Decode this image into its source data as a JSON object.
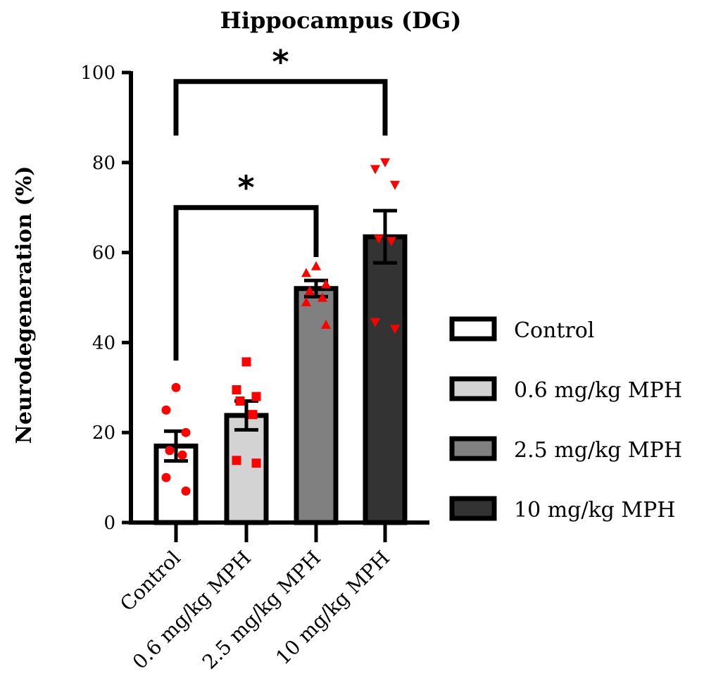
{
  "chart_data": {
    "type": "bar",
    "title": "Hippocampus (DG)",
    "ylabel": "Neurodegeneration (%)",
    "xlabel": "",
    "ylim": [
      0,
      100
    ],
    "yticks": [
      0,
      20,
      40,
      60,
      80,
      100
    ],
    "grid": false,
    "legend_position": "right",
    "categories": [
      "Control",
      "0.6 mg/kg MPH",
      "2.5 mg/kg MPH",
      "10 mg/kg MPH"
    ],
    "means": [
      17,
      23.8,
      52,
      63.5
    ],
    "sem": [
      3.3,
      3.2,
      1.8,
      5.8
    ],
    "bar_colors": [
      "#ffffff",
      "#d3d3d3",
      "#808080",
      "#333333"
    ],
    "point_color": "#ff0000",
    "marker_shapes": [
      "circle",
      "square",
      "triangle-up",
      "triangle-down"
    ],
    "points": [
      [
        30,
        25,
        20,
        16,
        15,
        10,
        7
      ],
      [
        35.7,
        29.5,
        28,
        27,
        24,
        13.8,
        13.2
      ],
      [
        57,
        55.5,
        53,
        51.5,
        50,
        49,
        44
      ],
      [
        80,
        78.5,
        75,
        63,
        62.5,
        44.5,
        43
      ]
    ],
    "annotations": [
      {
        "text": "*",
        "from": 0,
        "to": 3,
        "level": 98
      },
      {
        "text": "*",
        "from": 0,
        "to": 2,
        "level": 70
      }
    ]
  }
}
